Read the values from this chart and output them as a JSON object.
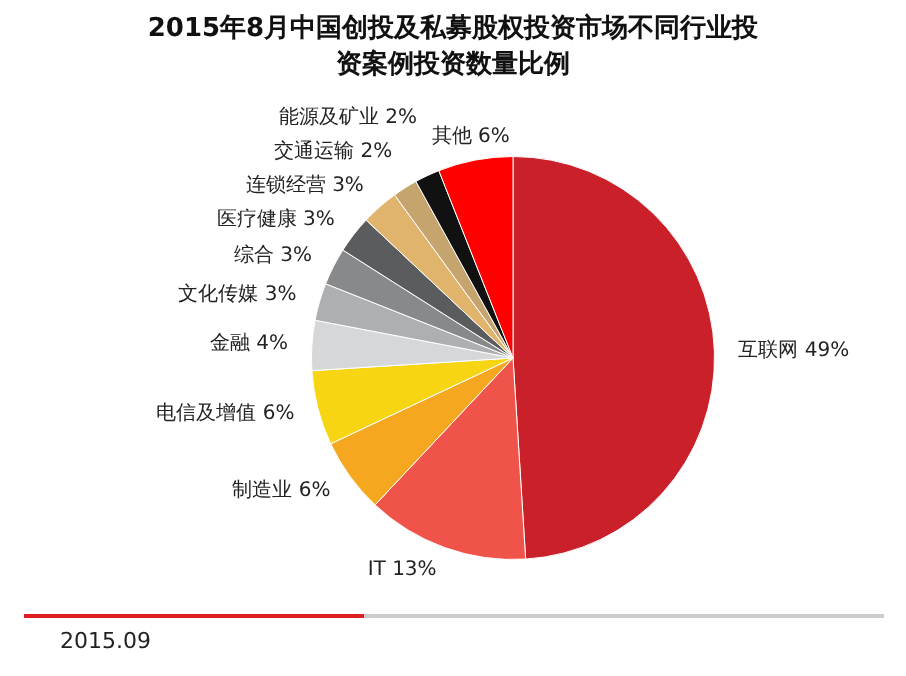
{
  "chart_data": {
    "type": "pie",
    "title": "2015年8月中国创投及私募股权投资市场不同行业投资案例投资数量比例",
    "categories": [
      "互联网",
      "IT",
      "制造业",
      "电信及增值",
      "金融",
      "文化传媒",
      "综合",
      "医疗健康",
      "连锁经营",
      "交通运输",
      "能源及矿业",
      "其他"
    ],
    "values": [
      49,
      13,
      6,
      6,
      4,
      3,
      3,
      3,
      3,
      2,
      2,
      6
    ],
    "colors": [
      "#c9202a",
      "#ef5349",
      "#f5a81f",
      "#f7d512",
      "#d6d7d9",
      "#aeafb1",
      "#88898b",
      "#5b5c5e",
      "#e0b46c",
      "#c6a46e",
      "#111111",
      "#fe0000"
    ],
    "value_labels": [
      "49%",
      "13%",
      "6%",
      "6%",
      "4%",
      "3%",
      "3%",
      "3%",
      "3%",
      "2%",
      "2%",
      "6%"
    ],
    "legend": false,
    "annotations": [
      "2015.09"
    ]
  }
}
